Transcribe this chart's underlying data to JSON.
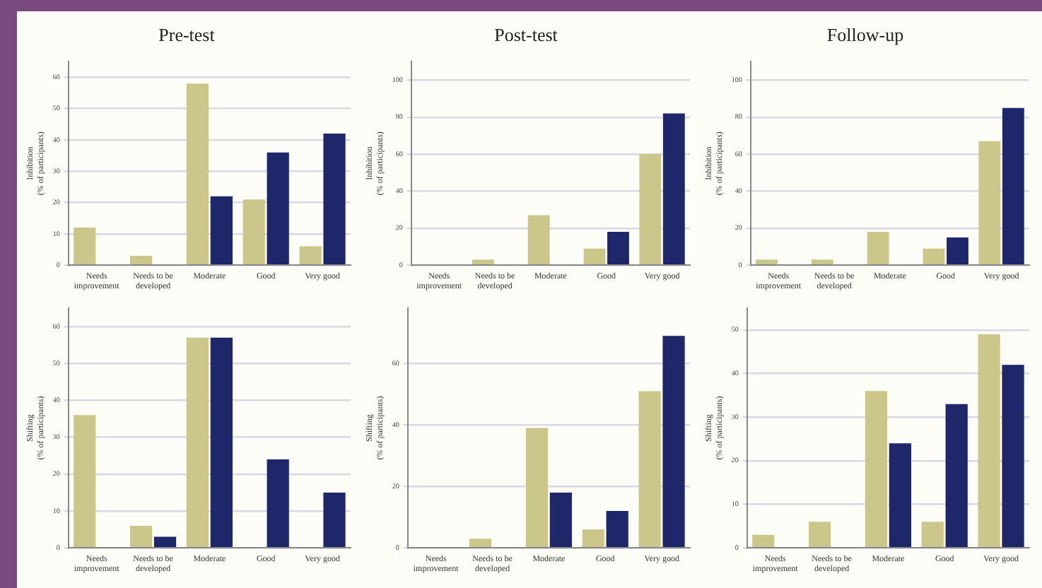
{
  "chart_data": [
    {
      "type": "bar",
      "title": "Pre-test",
      "ylabel": "Inhibition\n(% of participants)",
      "categories": [
        "Needs improvement",
        "Needs to be developed",
        "Moderate",
        "Good",
        "Very good"
      ],
      "series": [
        {
          "color": "#cbc68a",
          "values": [
            12,
            3,
            58,
            21,
            6
          ]
        },
        {
          "color": "#1f276b",
          "values": [
            null,
            null,
            22,
            36,
            42
          ]
        }
      ],
      "ylim": [
        0,
        65
      ],
      "yticks": [
        0,
        10,
        20,
        30,
        40,
        50,
        60
      ],
      "grid": "y"
    },
    {
      "type": "bar",
      "title": "Post-test",
      "ylabel": "Inhibition\n(% of participants)",
      "categories": [
        "Needs improvement",
        "Needs to be developed",
        "Moderate",
        "Good",
        "Very good"
      ],
      "series": [
        {
          "color": "#cbc68a",
          "values": [
            null,
            3,
            27,
            9,
            60
          ]
        },
        {
          "color": "#1f276b",
          "values": [
            null,
            null,
            null,
            18,
            82
          ]
        }
      ],
      "ylim": [
        0,
        110
      ],
      "yticks": [
        0,
        20,
        40,
        60,
        80,
        100
      ],
      "grid": "y"
    },
    {
      "type": "bar",
      "title": "Follow-up",
      "ylabel": "Inhibition\n(% of participants)",
      "categories": [
        "Needs improvement",
        "Needs to be developed",
        "Moderate",
        "Good",
        "Very good"
      ],
      "series": [
        {
          "color": "#cbc68a",
          "values": [
            3,
            3,
            18,
            9,
            67
          ]
        },
        {
          "color": "#1f276b",
          "values": [
            null,
            null,
            null,
            15,
            85
          ]
        }
      ],
      "ylim": [
        0,
        110
      ],
      "yticks": [
        0,
        20,
        40,
        60,
        80,
        100
      ],
      "grid": "y"
    },
    {
      "type": "bar",
      "ylabel": "Shifting\n(% of participants)",
      "categories": [
        "Needs improvement",
        "Needs to be developed",
        "Moderate",
        "Good",
        "Very good"
      ],
      "series": [
        {
          "color": "#cbc68a",
          "values": [
            36,
            6,
            57,
            null,
            null
          ]
        },
        {
          "color": "#1f276b",
          "values": [
            null,
            3,
            57,
            24,
            15
          ]
        }
      ],
      "ylim": [
        0,
        65
      ],
      "yticks": [
        0,
        10,
        20,
        30,
        40,
        50,
        60
      ],
      "grid": "y"
    },
    {
      "type": "bar",
      "ylabel": "Shifting\n(% of participants)",
      "categories": [
        "Needs improvement",
        "Needs to be developed",
        "Moderate",
        "Good",
        "Very good"
      ],
      "series": [
        {
          "color": "#cbc68a",
          "values": [
            null,
            3,
            39,
            6,
            51
          ]
        },
        {
          "color": "#1f276b",
          "values": [
            null,
            null,
            18,
            12,
            69
          ]
        }
      ],
      "ylim": [
        0,
        78
      ],
      "yticks": [
        0,
        20,
        40,
        60
      ],
      "grid": "y"
    },
    {
      "type": "bar",
      "ylabel": "Shifting\n(% of participants)",
      "categories": [
        "Needs improvement",
        "Needs to be developed",
        "Moderate",
        "Good",
        "Very good"
      ],
      "series": [
        {
          "color": "#cbc68a",
          "values": [
            3,
            6,
            36,
            6,
            49
          ]
        },
        {
          "color": "#1f276b",
          "values": [
            null,
            null,
            24,
            33,
            42
          ]
        }
      ],
      "ylim": [
        0,
        55
      ],
      "yticks": [
        0,
        10,
        20,
        30,
        40,
        50
      ],
      "grid": "y"
    }
  ]
}
